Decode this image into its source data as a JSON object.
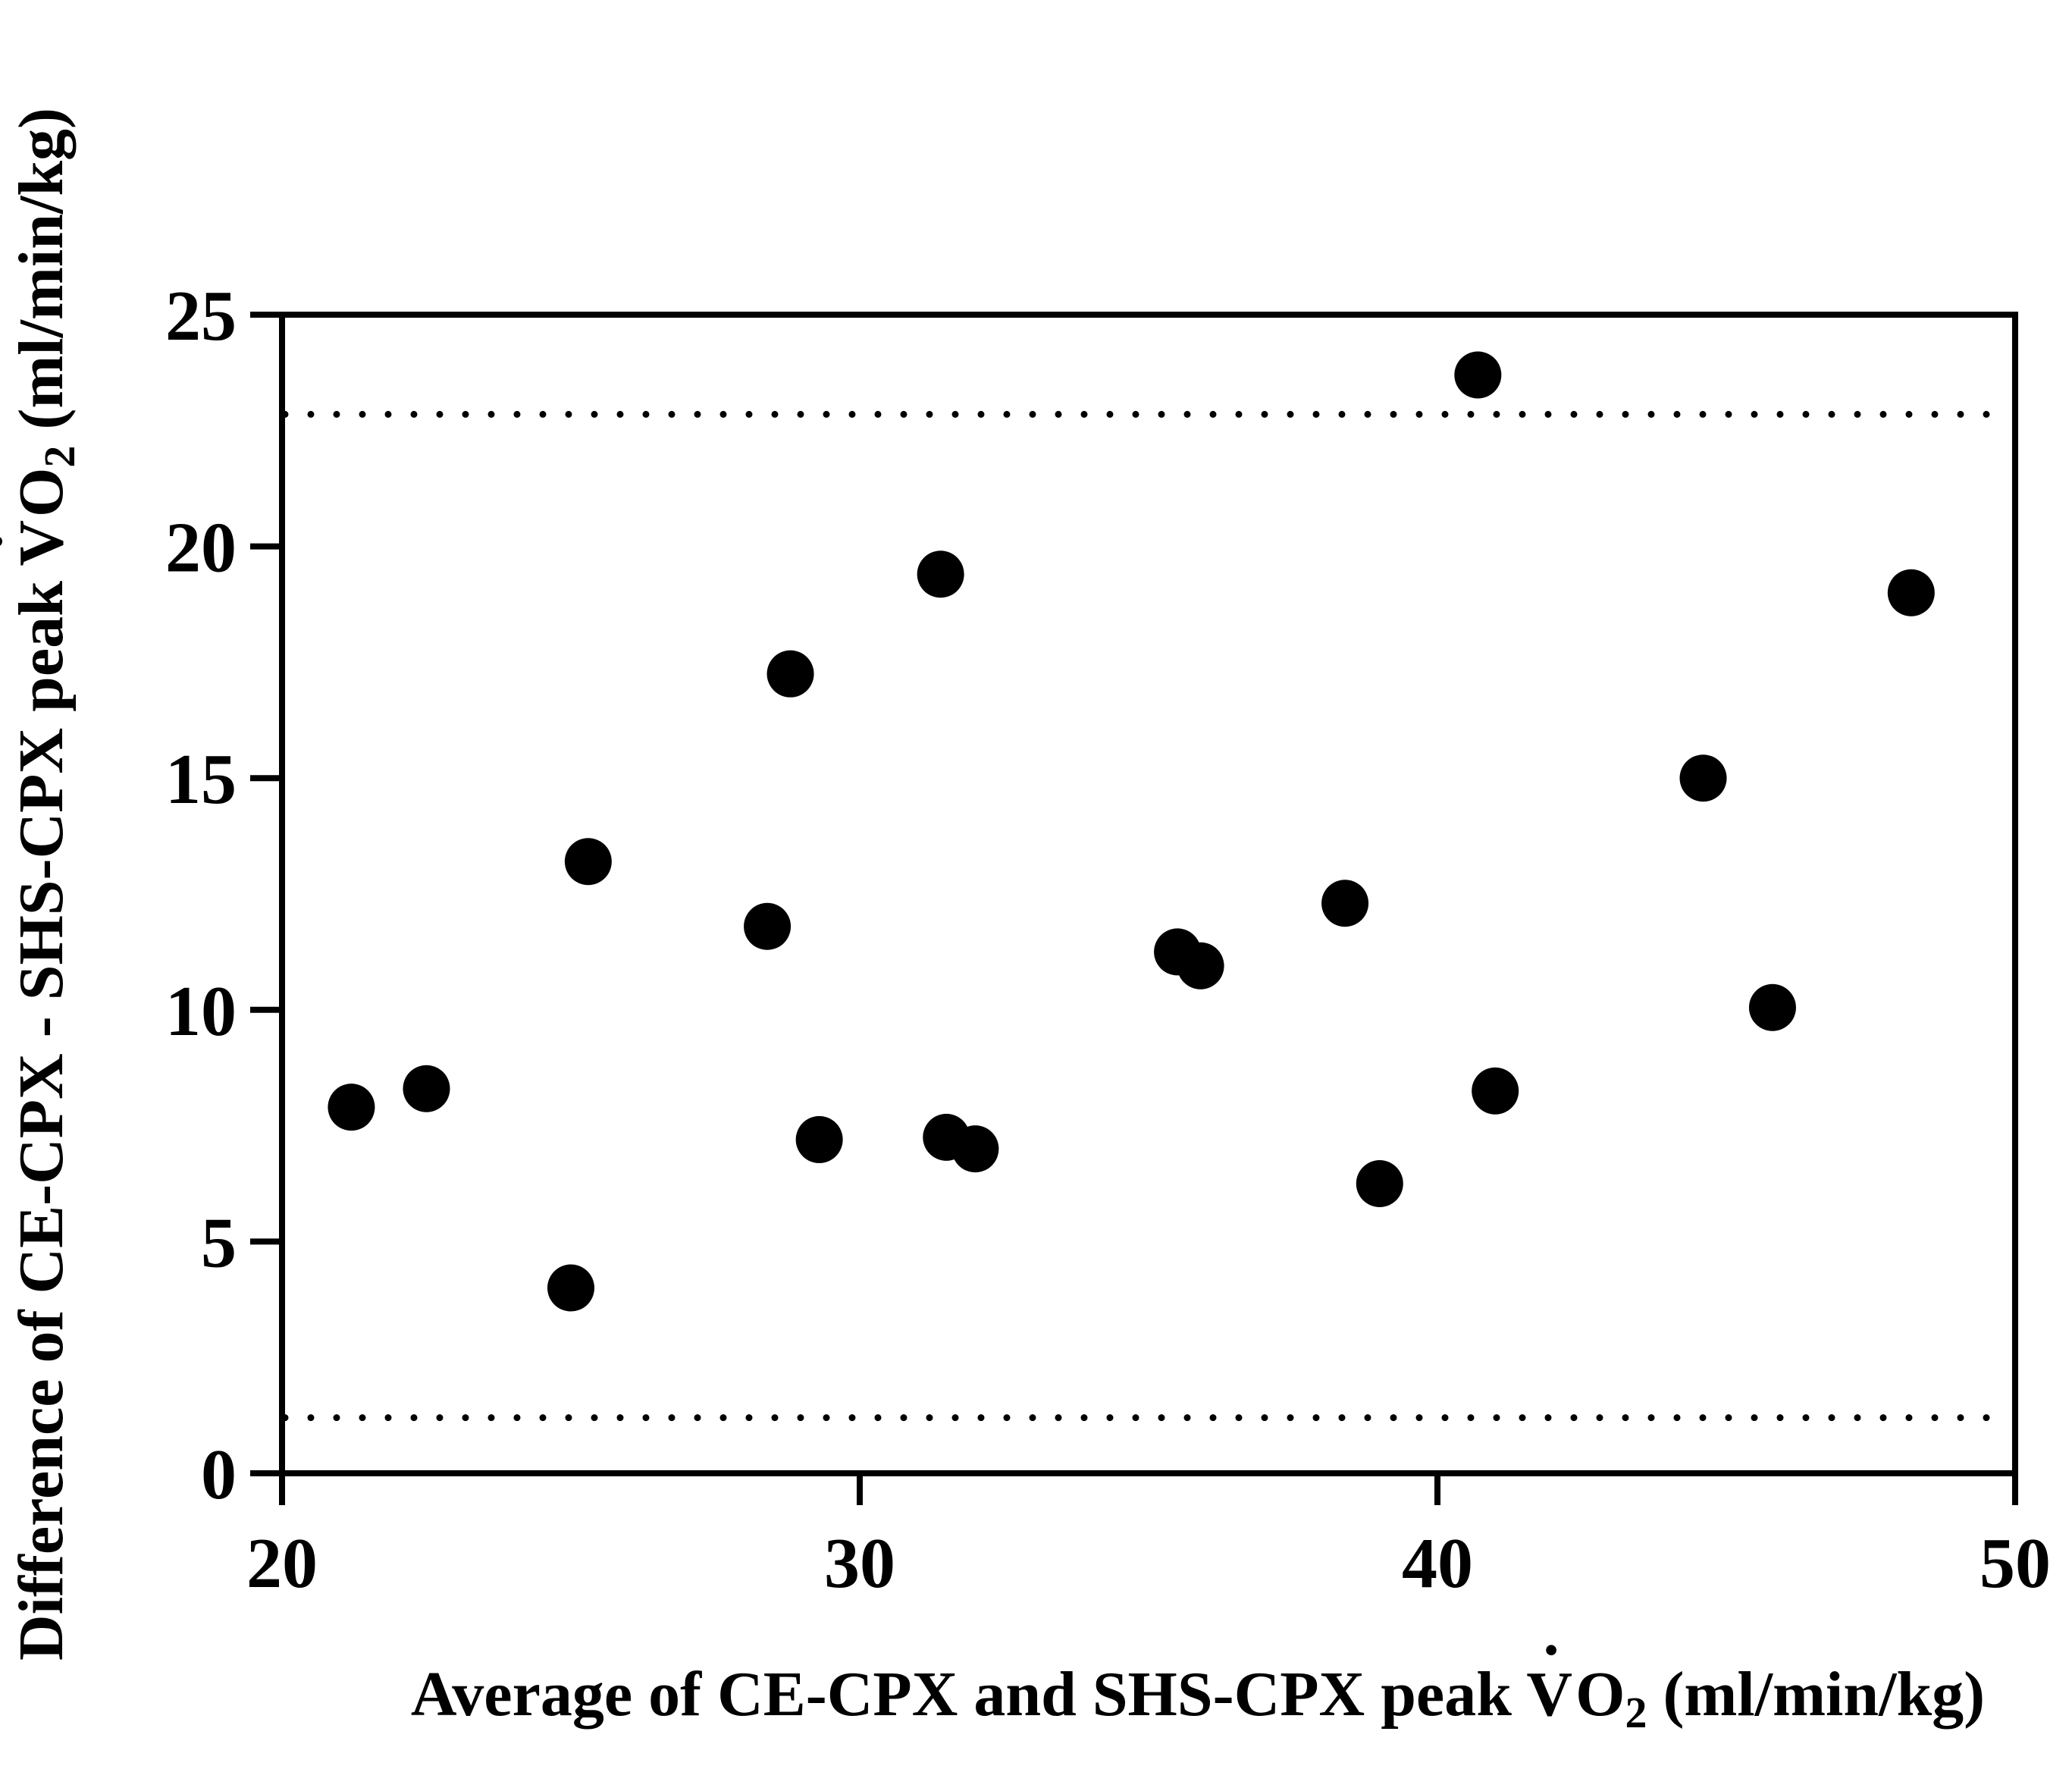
{
  "chart_data": {
    "type": "scatter",
    "title": "",
    "xlabel": {
      "before": "Average of CE-CPX and SHS-CPX peak ",
      "symbol": "V",
      "dot": "·",
      "o": "O",
      "sub": "2",
      "after": " (ml/min/kg)"
    },
    "ylabel": {
      "before": "Difference of CE-CPX - SHS-CPX peak ",
      "symbol": "V",
      "dot": "·",
      "o": "O",
      "sub": "2",
      "after": " (ml/min/kg)"
    },
    "xlim": [
      20,
      50
    ],
    "ylim": [
      0,
      25
    ],
    "xticks": [
      20,
      30,
      40,
      50
    ],
    "yticks": [
      0,
      5,
      10,
      15,
      20,
      25
    ],
    "grid": false,
    "limits_of_agreement": [
      22.85,
      1.2
    ],
    "points": [
      {
        "x": 21.2,
        "y": 7.9
      },
      {
        "x": 22.5,
        "y": 8.3
      },
      {
        "x": 25.0,
        "y": 4.0
      },
      {
        "x": 25.3,
        "y": 13.2
      },
      {
        "x": 28.4,
        "y": 11.8
      },
      {
        "x": 28.8,
        "y": 17.25
      },
      {
        "x": 29.3,
        "y": 7.2
      },
      {
        "x": 31.4,
        "y": 19.4
      },
      {
        "x": 31.5,
        "y": 7.25
      },
      {
        "x": 32.0,
        "y": 7.0
      },
      {
        "x": 35.5,
        "y": 11.25
      },
      {
        "x": 35.9,
        "y": 10.95
      },
      {
        "x": 38.4,
        "y": 12.3
      },
      {
        "x": 39.0,
        "y": 6.25
      },
      {
        "x": 40.7,
        "y": 23.7
      },
      {
        "x": 41.0,
        "y": 8.25
      },
      {
        "x": 44.6,
        "y": 15.0
      },
      {
        "x": 45.8,
        "y": 10.05
      },
      {
        "x": 48.2,
        "y": 19.0
      }
    ]
  }
}
